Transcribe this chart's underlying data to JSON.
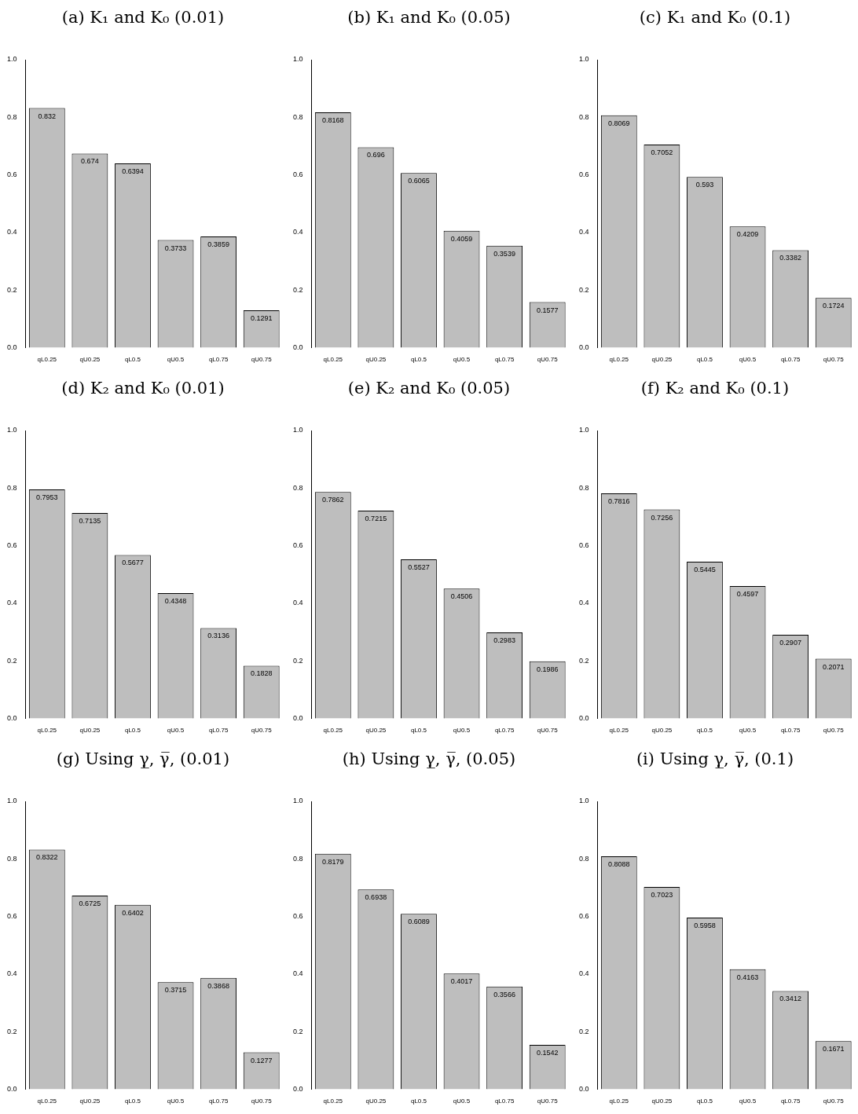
{
  "chart_data": [
    {
      "type": "bar",
      "title": "(a) K₁ and K₀ (0.01)",
      "categories": [
        "qL0.25",
        "qU0.25",
        "qL0.5",
        "qU0.5",
        "qL0.75",
        "qU0.75"
      ],
      "values": [
        0.832,
        0.674,
        0.6394,
        0.3733,
        0.3859,
        0.1291
      ],
      "color": "#bebebe",
      "ylim": [
        0,
        1
      ],
      "yticks": [
        {
          "value": 0,
          "label": "0.0"
        },
        {
          "value": 0.2,
          "label": "0.2"
        },
        {
          "value": 0.4,
          "label": "0.4"
        },
        {
          "value": 0.6,
          "label": "0.6"
        },
        {
          "value": 0.8,
          "label": "0.8"
        },
        {
          "value": 1,
          "label": "1.0"
        }
      ],
      "data_labels": true
    },
    {
      "type": "bar",
      "title": "(b) K₁ and K₀ (0.05)",
      "categories": [
        "qL0.25",
        "qU0.25",
        "qL0.5",
        "qU0.5",
        "qL0.75",
        "qU0.75"
      ],
      "values": [
        0.8168,
        0.696,
        0.6065,
        0.4059,
        0.3539,
        0.1577
      ],
      "color": "#bebebe",
      "ylim": [
        0,
        1
      ],
      "yticks": [
        {
          "value": 0,
          "label": "0.0"
        },
        {
          "value": 0.2,
          "label": "0.2"
        },
        {
          "value": 0.4,
          "label": "0.4"
        },
        {
          "value": 0.6,
          "label": "0.6"
        },
        {
          "value": 0.8,
          "label": "0.8"
        },
        {
          "value": 1,
          "label": "1.0"
        }
      ],
      "data_labels": true
    },
    {
      "type": "bar",
      "title": "(c) K₁ and K₀ (0.1)",
      "categories": [
        "qL0.25",
        "qU0.25",
        "qL0.5",
        "qU0.5",
        "qL0.75",
        "qU0.75"
      ],
      "values": [
        0.8069,
        0.7052,
        0.593,
        0.4209,
        0.3382,
        0.1724
      ],
      "color": "#bebebe",
      "ylim": [
        0,
        1
      ],
      "yticks": [
        {
          "value": 0,
          "label": "0.0"
        },
        {
          "value": 0.2,
          "label": "0.2"
        },
        {
          "value": 0.4,
          "label": "0.4"
        },
        {
          "value": 0.6,
          "label": "0.6"
        },
        {
          "value": 0.8,
          "label": "0.8"
        },
        {
          "value": 1,
          "label": "1.0"
        }
      ],
      "data_labels": true
    },
    {
      "type": "bar",
      "title": "(d) K₂ and K₀ (0.01)",
      "categories": [
        "qL0.25",
        "qU0.25",
        "qL0.5",
        "qU0.5",
        "qL0.75",
        "qU0.75"
      ],
      "values": [
        0.7953,
        0.7135,
        0.5677,
        0.4348,
        0.3136,
        0.1828
      ],
      "color": "#bebebe",
      "ylim": [
        0,
        1
      ],
      "yticks": [
        {
          "value": 0,
          "label": "0.0"
        },
        {
          "value": 0.2,
          "label": "0.2"
        },
        {
          "value": 0.4,
          "label": "0.4"
        },
        {
          "value": 0.6,
          "label": "0.6"
        },
        {
          "value": 0.8,
          "label": "0.8"
        },
        {
          "value": 1,
          "label": "1.0"
        }
      ],
      "data_labels": true
    },
    {
      "type": "bar",
      "title": "(e) K₂ and K₀ (0.05)",
      "categories": [
        "qL0.25",
        "qU0.25",
        "qL0.5",
        "qU0.5",
        "qL0.75",
        "qU0.75"
      ],
      "values": [
        0.7862,
        0.7215,
        0.5527,
        0.4506,
        0.2983,
        0.1986
      ],
      "color": "#bebebe",
      "ylim": [
        0,
        1
      ],
      "yticks": [
        {
          "value": 0,
          "label": "0.0"
        },
        {
          "value": 0.2,
          "label": "0.2"
        },
        {
          "value": 0.4,
          "label": "0.4"
        },
        {
          "value": 0.6,
          "label": "0.6"
        },
        {
          "value": 0.8,
          "label": "0.8"
        },
        {
          "value": 1,
          "label": "1.0"
        }
      ],
      "data_labels": true
    },
    {
      "type": "bar",
      "title": "(f) K₂ and K₀ (0.1)",
      "categories": [
        "qL0.25",
        "qU0.25",
        "qL0.5",
        "qU0.5",
        "qL0.75",
        "qU0.75"
      ],
      "values": [
        0.7816,
        0.7256,
        0.5445,
        0.4597,
        0.2907,
        0.2071
      ],
      "color": "#bebebe",
      "ylim": [
        0,
        1
      ],
      "yticks": [
        {
          "value": 0,
          "label": "0.0"
        },
        {
          "value": 0.2,
          "label": "0.2"
        },
        {
          "value": 0.4,
          "label": "0.4"
        },
        {
          "value": 0.6,
          "label": "0.6"
        },
        {
          "value": 0.8,
          "label": "0.8"
        },
        {
          "value": 1,
          "label": "1.0"
        }
      ],
      "data_labels": true
    },
    {
      "type": "bar",
      "title": "(g) Using γ̲, γ̅, (0.01)",
      "categories": [
        "qL0.25",
        "qU0.25",
        "qL0.5",
        "qU0.5",
        "qL0.75",
        "qU0.75"
      ],
      "values": [
        0.8322,
        0.6725,
        0.6402,
        0.3715,
        0.3868,
        0.1277
      ],
      "color": "#bebebe",
      "ylim": [
        0,
        1
      ],
      "yticks": [
        {
          "value": 0,
          "label": "0.0"
        },
        {
          "value": 0.2,
          "label": "0.2"
        },
        {
          "value": 0.4,
          "label": "0.4"
        },
        {
          "value": 0.6,
          "label": "0.6"
        },
        {
          "value": 0.8,
          "label": "0.8"
        },
        {
          "value": 1,
          "label": "1.0"
        }
      ],
      "data_labels": true
    },
    {
      "type": "bar",
      "title": "(h) Using γ̲, γ̅, (0.05)",
      "categories": [
        "qL0.25",
        "qU0.25",
        "qL0.5",
        "qU0.5",
        "qL0.75",
        "qU0.75"
      ],
      "values": [
        0.8179,
        0.6938,
        0.6089,
        0.4017,
        0.3566,
        0.1542
      ],
      "color": "#bebebe",
      "ylim": [
        0,
        1
      ],
      "yticks": [
        {
          "value": 0,
          "label": "0.0"
        },
        {
          "value": 0.2,
          "label": "0.2"
        },
        {
          "value": 0.4,
          "label": "0.4"
        },
        {
          "value": 0.6,
          "label": "0.6"
        },
        {
          "value": 0.8,
          "label": "0.8"
        },
        {
          "value": 1,
          "label": "1.0"
        }
      ],
      "data_labels": true
    },
    {
      "type": "bar",
      "title": "(i) Using γ̲, γ̅, (0.1)",
      "categories": [
        "qL0.25",
        "qU0.25",
        "qL0.5",
        "qU0.5",
        "qL0.75",
        "qU0.75"
      ],
      "values": [
        0.8088,
        0.7023,
        0.5958,
        0.4163,
        0.3412,
        0.1671
      ],
      "color": "#bebebe",
      "ylim": [
        0,
        1
      ],
      "yticks": [
        {
          "value": 0,
          "label": "0.0"
        },
        {
          "value": 0.2,
          "label": "0.2"
        },
        {
          "value": 0.4,
          "label": "0.4"
        },
        {
          "value": 0.6,
          "label": "0.6"
        },
        {
          "value": 0.8,
          "label": "0.8"
        },
        {
          "value": 1,
          "label": "1.0"
        }
      ],
      "data_labels": true
    }
  ]
}
